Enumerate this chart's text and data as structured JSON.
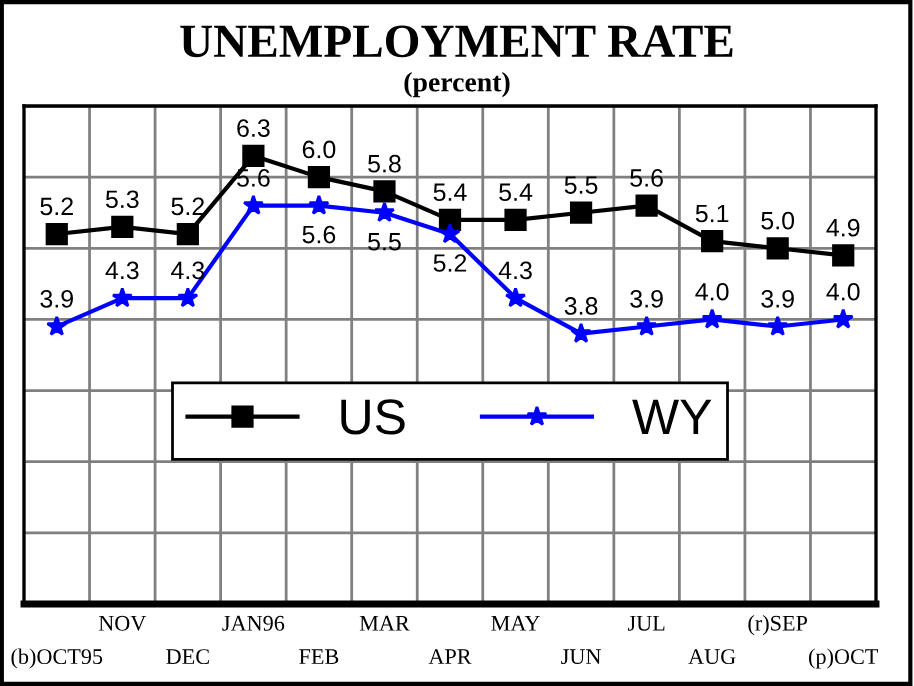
{
  "chart_data": {
    "type": "line",
    "title": "UNEMPLOYMENT RATE",
    "subtitle": "(percent)",
    "categories": [
      "(b)OCT95",
      "NOV",
      "DEC",
      "JAN96",
      "FEB",
      "MAR",
      "APR",
      "MAY",
      "JUN",
      "JUL",
      "AUG",
      "(r)SEP",
      "(p)OCT"
    ],
    "series": [
      {
        "name": "US",
        "color": "#000000",
        "marker": "square",
        "values": [
          5.2,
          5.3,
          5.2,
          6.3,
          6.0,
          5.8,
          5.4,
          5.4,
          5.5,
          5.6,
          5.1,
          5.0,
          4.9
        ],
        "value_labels": [
          "5.2",
          "5.3",
          "5.2",
          "6.3",
          "6.0",
          "5.8",
          "5.4",
          "5.4",
          "5.5",
          "5.6",
          "5.1",
          "5.0",
          "4.9"
        ]
      },
      {
        "name": "WY",
        "color": "#0000ff",
        "marker": "star",
        "values": [
          3.9,
          4.3,
          4.3,
          5.6,
          5.6,
          5.5,
          5.2,
          4.3,
          3.8,
          3.9,
          4.0,
          3.9,
          4.0
        ],
        "value_labels": [
          "3.9",
          "4.3",
          "4.3",
          "5.6",
          "5.6",
          "5.5",
          "5.2",
          "4.3",
          "3.8",
          "3.9",
          "4.0",
          "3.9",
          "4.0"
        ]
      }
    ],
    "ylim": [
      0,
      7
    ],
    "yticks": [
      {
        "value": 0,
        "label": null
      },
      {
        "value": 1,
        "label": null
      },
      {
        "value": 2,
        "label": null
      },
      {
        "value": 3,
        "label": null
      },
      {
        "value": 4,
        "label": null
      },
      {
        "value": 5,
        "label": null
      },
      {
        "value": 6,
        "label": null
      },
      {
        "value": 7,
        "label": null
      }
    ],
    "tick_labels": "x",
    "grid": true,
    "legend": "bottom",
    "line_style": "solid"
  }
}
